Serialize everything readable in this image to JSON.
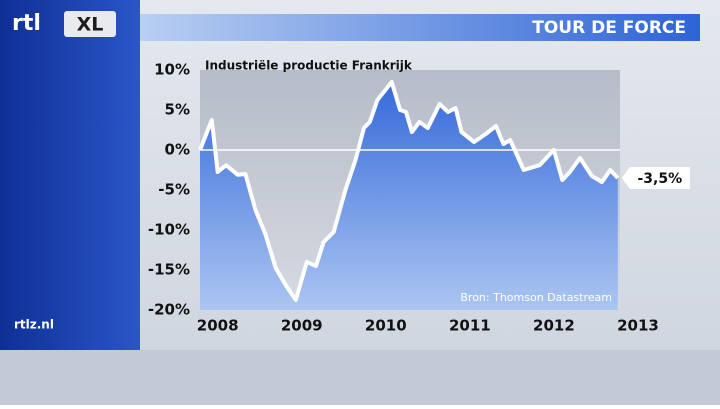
{
  "logo": {
    "brand": "rtl",
    "channel": "XL"
  },
  "show_title": "TOUR DE FORCE",
  "website": "rtlz.nl",
  "chart_data": {
    "type": "line",
    "title": "Industriële productie Frankrijk",
    "source": "Bron: Thomson Datastream",
    "x": [
      2007.79,
      2007.93,
      2008.0,
      2008.1,
      2008.24,
      2008.33,
      2008.45,
      2008.57,
      2008.69,
      2008.81,
      2008.93,
      2009.06,
      2009.17,
      2009.26,
      2009.38,
      2009.52,
      2009.64,
      2009.74,
      2009.81,
      2009.9,
      2010.07,
      2010.17,
      2010.24,
      2010.31,
      2010.4,
      2010.5,
      2010.64,
      2010.74,
      2010.83,
      2010.9,
      2011.05,
      2011.19,
      2011.31,
      2011.4,
      2011.48,
      2011.64,
      2011.83,
      2012.0,
      2012.1,
      2012.19,
      2012.31,
      2012.45,
      2012.57,
      2012.67,
      2012.76
    ],
    "series": [
      {
        "name": "Industriële productie",
        "color": "#ffffff",
        "values": [
          0,
          3.75,
          -2.75,
          -1.9,
          -3.1,
          -3,
          -7.5,
          -10.6,
          -14.75,
          -16.9,
          -18.75,
          -14,
          -14.5,
          -11.5,
          -10.25,
          -5,
          -1.25,
          2.75,
          3.5,
          6.25,
          8.5,
          5,
          4.75,
          2.25,
          3.5,
          2.75,
          5.75,
          4.75,
          5.25,
          2.25,
          1,
          2,
          3,
          0.75,
          1.25,
          -2.5,
          -1.9,
          0,
          -3.75,
          -2.75,
          -1,
          -3.25,
          -4,
          -2.5,
          -3.5
        ],
        "last_value": -3.5,
        "last_value_label": "-3,5%"
      }
    ],
    "area_color": "#3f78e0",
    "xlim": [
      2007.79,
      2013.0
    ],
    "xticks": [
      2008,
      2009,
      2010,
      2011,
      2012,
      2013
    ],
    "ylim": [
      -20,
      10
    ],
    "yticks": [
      {
        "value": -20,
        "label": "-20%"
      },
      {
        "value": -15,
        "label": "-15%"
      },
      {
        "value": -10,
        "label": "-10%"
      },
      {
        "value": -5,
        "label": "-5%"
      },
      {
        "value": 0,
        "label": "0%"
      },
      {
        "value": 5,
        "label": "5%"
      },
      {
        "value": 10,
        "label": "10%"
      }
    ],
    "zero_line": true
  }
}
